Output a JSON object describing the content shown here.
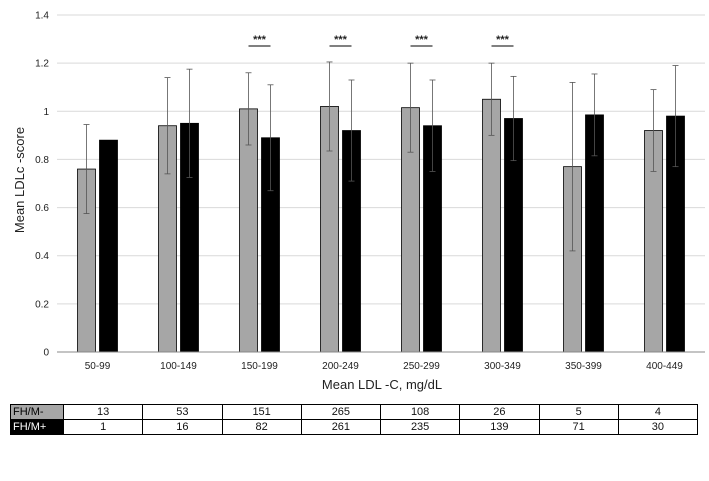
{
  "chart_data": {
    "type": "bar",
    "xlabel": "Mean LDL -C, mg/dL",
    "ylabel": "Mean LDLc -score",
    "ylim": [
      0,
      1.4
    ],
    "yticks": [
      "0",
      "0.2",
      "0.4",
      "0.6",
      "0.8",
      "1",
      "1.2",
      "1.4"
    ],
    "grid": "horizontal",
    "categories": [
      "50-99",
      "100-149",
      "150-199",
      "200-249",
      "250-299",
      "300-349",
      "350-399",
      "400-449"
    ],
    "series": [
      {
        "color": "#a6a6a6",
        "values": [
          0.76,
          0.94,
          1.01,
          1.02,
          1.015,
          1.05,
          0.77,
          0.92
        ],
        "error": [
          0.185,
          0.2,
          0.15,
          0.185,
          0.185,
          0.15,
          0.35,
          0.17
        ]
      },
      {
        "color": "#000000",
        "values": [
          0.88,
          0.95,
          0.89,
          0.92,
          0.94,
          0.97,
          0.985,
          0.98
        ],
        "error": [
          0,
          0.225,
          0.22,
          0.21,
          0.19,
          0.175,
          0.17,
          0.21
        ]
      }
    ],
    "significance": [
      {
        "category": "150-199",
        "label": "***"
      },
      {
        "category": "200-249",
        "label": "***"
      },
      {
        "category": "250-299",
        "label": "***"
      },
      {
        "category": "300-349",
        "label": "***"
      }
    ]
  },
  "count_table": {
    "rows": [
      {
        "label": "FH/M-",
        "values": [
          "13",
          "53",
          "151",
          "265",
          "108",
          "26",
          "5",
          "4"
        ]
      },
      {
        "label": "FH/M+",
        "values": [
          "1",
          "16",
          "82",
          "261",
          "235",
          "139",
          "71",
          "30"
        ]
      }
    ]
  }
}
